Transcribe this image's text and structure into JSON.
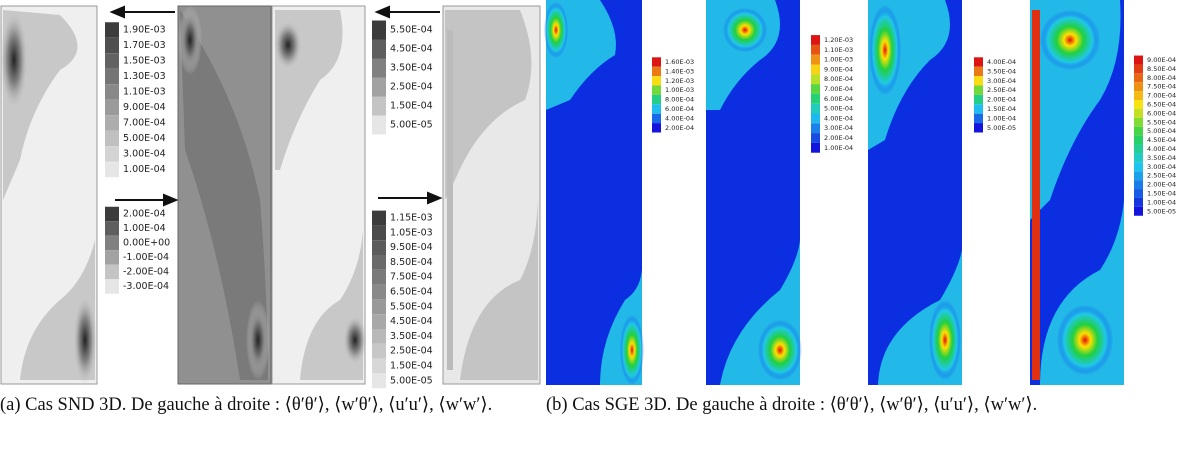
{
  "figures": [
    {
      "caption": "(a) Cas SND 3D. De gauche à droite : ⟨θ′θ′⟩, ⟨w′θ′⟩, ⟨u′u′⟩, ⟨w′w′⟩.",
      "colorbars": [
        {
          "labels": [
            "1.90E-03",
            "1.70E-03",
            "1.50E-03",
            "1.30E-03",
            "1.10E-03",
            "9.00E-04",
            "7.00E-04",
            "5.00E-04",
            "3.00E-04",
            "1.00E-04"
          ]
        },
        {
          "labels": [
            "2.00E-04",
            "1.00E-04",
            "0.00E+00",
            "-1.00E-04",
            "-2.00E-04",
            "-3.00E-04"
          ]
        },
        {
          "labels": [
            "5.50E-04",
            "4.50E-04",
            "3.50E-04",
            "2.50E-04",
            "1.50E-04",
            "5.00E-05"
          ]
        },
        {
          "labels": [
            "1.15E-03",
            "1.05E-03",
            "9.50E-04",
            "8.50E-04",
            "7.50E-04",
            "6.50E-04",
            "5.50E-04",
            "4.50E-04",
            "3.50E-04",
            "2.50E-04",
            "1.50E-04",
            "5.00E-05"
          ]
        }
      ]
    },
    {
      "caption": "(b) Cas SGE 3D. De gauche à droite : ⟨θ′θ′⟩, ⟨w′θ′⟩, ⟨u′u′⟩, ⟨w′w′⟩.",
      "colorbars": [
        {
          "labels": [
            "1.60E-03",
            "1.40E-03",
            "1.20E-03",
            "1.00E-03",
            "8.00E-04",
            "6.00E-04",
            "4.00E-04",
            "2.00E-04"
          ]
        },
        {
          "labels": [
            "1.20E-03",
            "1.10E-03",
            "1.00E-03",
            "9.00E-04",
            "8.00E-04",
            "7.00E-04",
            "6.00E-04",
            "5.00E-04",
            "4.00E-04",
            "3.00E-04",
            "2.00E-04",
            "1.00E-04"
          ]
        },
        {
          "labels": [
            "4.00E-04",
            "3.50E-04",
            "3.00E-04",
            "2.50E-04",
            "2.00E-04",
            "1.50E-04",
            "1.00E-04",
            "5.00E-05"
          ]
        },
        {
          "labels": [
            "9.00E-04",
            "8.50E-04",
            "8.00E-04",
            "7.50E-04",
            "7.00E-04",
            "6.50E-04",
            "6.00E-04",
            "5.50E-04",
            "5.00E-04",
            "4.50E-04",
            "4.00E-04",
            "3.50E-04",
            "3.00E-04",
            "2.50E-04",
            "2.00E-04",
            "1.50E-04",
            "1.00E-04",
            "5.00E-05"
          ]
        }
      ]
    }
  ]
}
